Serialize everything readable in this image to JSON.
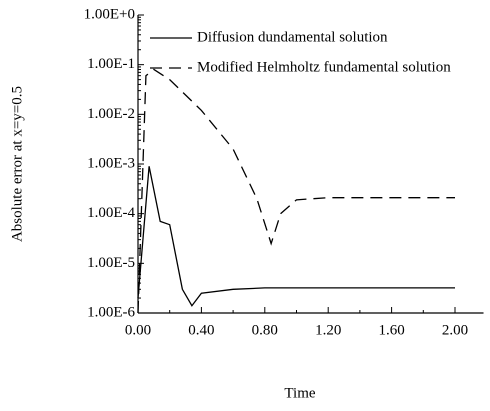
{
  "chart_data": {
    "type": "line",
    "xlabel": "Time",
    "ylabel": "Absolute error at x=y=0.5",
    "log_y": true,
    "xlim": [
      0,
      2.18
    ],
    "ylim": [
      1e-06,
      1
    ],
    "xticks": [
      {
        "value": 0,
        "label": "0.00"
      },
      {
        "value": 0.4,
        "label": "0.40"
      },
      {
        "value": 0.8,
        "label": "0.80"
      },
      {
        "value": 1.2,
        "label": "1.20"
      },
      {
        "value": 1.6,
        "label": "1.60"
      },
      {
        "value": 2,
        "label": "2.00"
      }
    ],
    "yticks": [
      {
        "value": 1,
        "label": "1.00E+0"
      },
      {
        "value": 0.1,
        "label": "1.00E-1"
      },
      {
        "value": 0.01,
        "label": "1.00E-2"
      },
      {
        "value": 0.001,
        "label": "1.00E-3"
      },
      {
        "value": 0.0001,
        "label": "1.00E-4"
      },
      {
        "value": 1e-05,
        "label": "1.00E-5"
      },
      {
        "value": 1e-06,
        "label": "1.00E-6"
      }
    ],
    "legend": "upper right",
    "series": [
      {
        "name": "Diffusion dundamental solution",
        "color": "#000000",
        "dash": "solid",
        "x": [
          0,
          0.07,
          0.14,
          0.2,
          0.28,
          0.34,
          0.4,
          0.6,
          0.8,
          1.0,
          1.2,
          1.6,
          2.0
        ],
        "values": [
          2e-06,
          0.0009,
          7e-05,
          6e-05,
          3e-06,
          1.4e-06,
          2.5e-06,
          3e-06,
          3.2e-06,
          3.2e-06,
          3.2e-06,
          3.2e-06,
          3.2e-06
        ]
      },
      {
        "name": "Modified Helmholtz fundamental solution",
        "color": "#000000",
        "dash": "dashed",
        "x": [
          0,
          0.05,
          0.1,
          0.2,
          0.4,
          0.6,
          0.75,
          0.84,
          0.9,
          1.0,
          1.2,
          1.6,
          2.0
        ],
        "values": [
          1e-06,
          0.06,
          0.08,
          0.05,
          0.012,
          0.002,
          0.0002,
          2.5e-05,
          0.0001,
          0.00019,
          0.00021,
          0.00021,
          0.00021
        ]
      }
    ]
  }
}
